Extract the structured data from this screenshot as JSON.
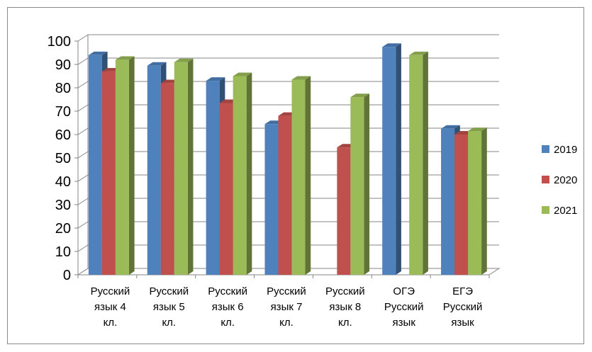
{
  "chart_data": {
    "type": "bar",
    "title": "",
    "xlabel": "",
    "ylabel": "",
    "ylim": [
      0,
      100
    ],
    "yticks": [
      "0",
      "10",
      "20",
      "30",
      "40",
      "50",
      "60",
      "70",
      "80",
      "90",
      "100"
    ],
    "categories": [
      [
        "Русский",
        "язык 4",
        "кл."
      ],
      [
        "Русский",
        "язык 5",
        "кл."
      ],
      [
        "Русский",
        "язык 6",
        "кл."
      ],
      [
        "Русский",
        "язык 7",
        "кл."
      ],
      [
        "Русский",
        "язык 8",
        "кл."
      ],
      [
        "ОГЭ",
        "Русский",
        "язык"
      ],
      [
        "ЕГЭ",
        "Русский",
        "язык"
      ]
    ],
    "series": [
      {
        "name": "2019",
        "color": "#4f81bd",
        "values": [
          94,
          89.5,
          83,
          64.5,
          null,
          97.5,
          62.5
        ]
      },
      {
        "name": "2020",
        "color": "#c0504d",
        "values": [
          87,
          82,
          73.5,
          68,
          54.5,
          null,
          60
        ]
      },
      {
        "name": "2021",
        "color": "#9bbb59",
        "values": [
          92,
          91,
          85,
          83.5,
          76,
          94,
          61.5
        ]
      }
    ],
    "legend": "right",
    "grid": true
  }
}
